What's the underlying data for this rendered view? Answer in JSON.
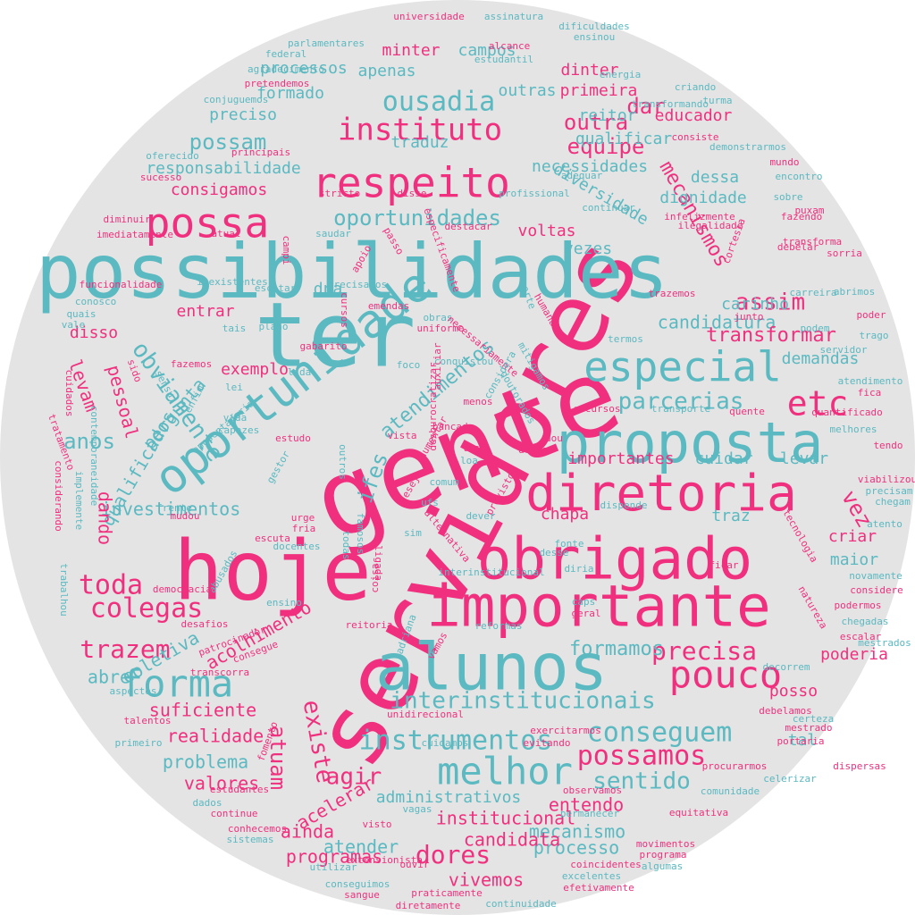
{
  "palette": {
    "background": "#e4e4e4",
    "pink": "#f0307e",
    "teal": "#5bb9c1"
  },
  "words": [
    {
      "t": "servidores",
      "c": "pink"
    },
    {
      "t": "gente",
      "c": "pink"
    },
    {
      "t": "ter",
      "c": "teal"
    },
    {
      "t": "hoje",
      "c": "pink"
    },
    {
      "t": "possibilidades",
      "c": "teal"
    },
    {
      "t": "importante",
      "c": "pink"
    },
    {
      "t": "obrigado",
      "c": "pink"
    },
    {
      "t": "alunos",
      "c": "teal"
    },
    {
      "t": "proposta",
      "c": "teal"
    },
    {
      "t": "diretoria",
      "c": "pink"
    },
    {
      "t": "oportunidade",
      "c": "teal"
    },
    {
      "t": "respeito",
      "c": "pink"
    },
    {
      "t": "especial",
      "c": "teal"
    },
    {
      "t": "possa",
      "c": "pink"
    },
    {
      "t": "melhor",
      "c": "teal"
    },
    {
      "t": "pouco",
      "c": "pink"
    },
    {
      "t": "forma",
      "c": "teal"
    },
    {
      "t": "instituto",
      "c": "pink"
    },
    {
      "t": "etc",
      "c": "pink"
    },
    {
      "t": "ousadia",
      "c": "teal"
    },
    {
      "t": "obviamente",
      "c": "teal"
    },
    {
      "t": "instrumentos",
      "c": "teal"
    },
    {
      "t": "conseguem",
      "c": "teal"
    },
    {
      "t": "possamos",
      "c": "pink"
    },
    {
      "t": "interinstitucionais",
      "c": "teal"
    },
    {
      "t": "oportunidades",
      "c": "teal"
    },
    {
      "t": "parcerias",
      "c": "teal"
    },
    {
      "t": "colegas",
      "c": "pink"
    },
    {
      "t": "toda",
      "c": "pink"
    },
    {
      "t": "trazem",
      "c": "pink"
    },
    {
      "t": "precisa",
      "c": "pink"
    },
    {
      "t": "equipe",
      "c": "pink"
    },
    {
      "t": "outra",
      "c": "pink"
    },
    {
      "t": "dar",
      "c": "pink"
    },
    {
      "t": "possam",
      "c": "teal"
    },
    {
      "t": "assim",
      "c": "pink"
    },
    {
      "t": "sentido",
      "c": "teal"
    },
    {
      "t": "dores",
      "c": "pink"
    },
    {
      "t": "agir",
      "c": "pink"
    },
    {
      "t": "atuam",
      "c": "pink"
    },
    {
      "t": "existe",
      "c": "pink"
    },
    {
      "t": "vez",
      "c": "pink"
    },
    {
      "t": "anos",
      "c": "teal"
    },
    {
      "t": "ifes",
      "c": "teal"
    },
    {
      "t": "mecanismos",
      "c": "pink"
    },
    {
      "t": "diversidade",
      "c": "teal"
    },
    {
      "t": "candidatura",
      "c": "teal"
    },
    {
      "t": "transformar",
      "c": "pink"
    },
    {
      "t": "formamos",
      "c": "teal"
    },
    {
      "t": "acolhimento",
      "c": "pink"
    },
    {
      "t": "institucional",
      "c": "pink"
    },
    {
      "t": "administrativos",
      "c": "teal"
    },
    {
      "t": "programas",
      "c": "pink"
    },
    {
      "t": "vivemos",
      "c": "pink"
    },
    {
      "t": "processo",
      "c": "teal"
    },
    {
      "t": "mecanismo",
      "c": "teal"
    },
    {
      "t": "candidata",
      "c": "pink"
    },
    {
      "t": "acelerar",
      "c": "pink"
    },
    {
      "t": "ainda",
      "c": "pink"
    },
    {
      "t": "entendo",
      "c": "pink"
    },
    {
      "t": "atender",
      "c": "teal"
    },
    {
      "t": "valores",
      "c": "pink"
    },
    {
      "t": "problema",
      "c": "teal"
    },
    {
      "t": "realidade",
      "c": "pink"
    },
    {
      "t": "suficiente",
      "c": "pink"
    },
    {
      "t": "abre",
      "c": "teal"
    },
    {
      "t": "coletiva",
      "c": "teal"
    },
    {
      "t": "investimentos",
      "c": "teal"
    },
    {
      "t": "qualificados",
      "c": "teal"
    },
    {
      "t": "pergunta",
      "c": "teal"
    },
    {
      "t": "pessoal",
      "c": "pink"
    },
    {
      "t": "dando",
      "c": "pink"
    },
    {
      "t": "levam",
      "c": "pink"
    },
    {
      "t": "disso",
      "c": "pink"
    },
    {
      "t": "entrar",
      "c": "pink"
    },
    {
      "t": "exemplo",
      "c": "pink"
    },
    {
      "t": "dna",
      "c": "teal"
    },
    {
      "t": "vezes",
      "c": "teal"
    },
    {
      "t": "voltas",
      "c": "pink"
    },
    {
      "t": "dignidade",
      "c": "teal"
    },
    {
      "t": "dessa",
      "c": "teal"
    },
    {
      "t": "necessidades",
      "c": "teal"
    },
    {
      "t": "consigamos",
      "c": "pink"
    },
    {
      "t": "responsabilidade",
      "c": "teal"
    },
    {
      "t": "traduz",
      "c": "teal"
    },
    {
      "t": "qualificar",
      "c": "teal"
    },
    {
      "t": "reitor",
      "c": "teal"
    },
    {
      "t": "educador",
      "c": "pink"
    },
    {
      "t": "preciso",
      "c": "teal"
    },
    {
      "t": "formado",
      "c": "teal"
    },
    {
      "t": "outras",
      "c": "teal"
    },
    {
      "t": "primeira",
      "c": "pink"
    },
    {
      "t": "processos",
      "c": "teal"
    },
    {
      "t": "apenas",
      "c": "teal"
    },
    {
      "t": "minter",
      "c": "pink"
    },
    {
      "t": "campos",
      "c": "teal"
    },
    {
      "t": "dinter",
      "c": "pink"
    },
    {
      "t": "carinho",
      "c": "teal"
    },
    {
      "t": "demandas",
      "c": "teal"
    },
    {
      "t": "levar",
      "c": "teal"
    },
    {
      "t": "cuidar",
      "c": "teal"
    },
    {
      "t": "importantes",
      "c": "pink"
    },
    {
      "t": "traz",
      "c": "teal"
    },
    {
      "t": "chapa",
      "c": "pink"
    },
    {
      "t": "criar",
      "c": "pink"
    },
    {
      "t": "maior",
      "c": "teal"
    },
    {
      "t": "poderia",
      "c": "pink"
    },
    {
      "t": "posso",
      "c": "pink"
    },
    {
      "t": "tal",
      "c": "teal"
    },
    {
      "t": "atendimentos",
      "c": "teal"
    },
    {
      "t": "universidade",
      "c": "pink"
    },
    {
      "t": "assinatura",
      "c": "teal"
    },
    {
      "t": "dificuldades",
      "c": "teal"
    },
    {
      "t": "ensinou",
      "c": "teal"
    },
    {
      "t": "parlamentares",
      "c": "teal"
    },
    {
      "t": "alcance",
      "c": "pink"
    },
    {
      "t": "federal",
      "c": "teal"
    },
    {
      "t": "estudantil",
      "c": "teal"
    },
    {
      "t": "agradecimento",
      "c": "teal"
    },
    {
      "t": "pretendemos",
      "c": "pink"
    },
    {
      "t": "energia",
      "c": "teal"
    },
    {
      "t": "criando",
      "c": "teal"
    },
    {
      "t": "conjuguemos",
      "c": "teal"
    },
    {
      "t": "turma",
      "c": "teal"
    },
    {
      "t": "transformando",
      "c": "teal"
    },
    {
      "t": "consiste",
      "c": "pink"
    },
    {
      "t": "demonstrarmos",
      "c": "teal"
    },
    {
      "t": "principais",
      "c": "pink"
    },
    {
      "t": "oferecido",
      "c": "teal"
    },
    {
      "t": "mundo",
      "c": "pink"
    },
    {
      "t": "sucesso",
      "c": "pink"
    },
    {
      "t": "adequar",
      "c": "teal"
    },
    {
      "t": "encontro",
      "c": "teal"
    },
    {
      "t": "stricto",
      "c": "pink"
    },
    {
      "t": "disse",
      "c": "pink"
    },
    {
      "t": "profissional",
      "c": "teal"
    },
    {
      "t": "sobre",
      "c": "teal"
    },
    {
      "t": "continuar",
      "c": "teal"
    },
    {
      "t": "puxam",
      "c": "pink"
    },
    {
      "t": "diminuir",
      "c": "pink"
    },
    {
      "t": "infelizmente",
      "c": "pink"
    },
    {
      "t": "fazendo",
      "c": "pink"
    },
    {
      "t": "imediatamente",
      "c": "pink"
    },
    {
      "t": "atual",
      "c": "pink"
    },
    {
      "t": "saudar",
      "c": "teal"
    },
    {
      "t": "destacar",
      "c": "pink"
    },
    {
      "t": "ilegalidade",
      "c": "pink"
    },
    {
      "t": "transforma",
      "c": "pink"
    },
    {
      "t": "debelar",
      "c": "pink"
    },
    {
      "t": "sorria",
      "c": "pink"
    },
    {
      "t": "campi",
      "c": "pink"
    },
    {
      "t": "apoio",
      "c": "pink"
    },
    {
      "t": "passo",
      "c": "pink"
    },
    {
      "t": "especificamente",
      "c": "pink"
    },
    {
      "t": "cortesia",
      "c": "pink"
    },
    {
      "t": "inexistentes",
      "c": "teal"
    },
    {
      "t": "funcionalidade",
      "c": "pink"
    },
    {
      "t": "escitar",
      "c": "teal"
    },
    {
      "t": "precisamos",
      "c": "teal"
    },
    {
      "t": "trazemos",
      "c": "pink"
    },
    {
      "t": "carreira",
      "c": "teal"
    },
    {
      "t": "abrimos",
      "c": "teal"
    },
    {
      "t": "conosco",
      "c": "teal"
    },
    {
      "t": "cursos",
      "c": "pink"
    },
    {
      "t": "emendas",
      "c": "pink"
    },
    {
      "t": "humana",
      "c": "pink"
    },
    {
      "t": "sorte",
      "c": "teal"
    },
    {
      "t": "quais",
      "c": "teal"
    },
    {
      "t": "poder",
      "c": "pink"
    },
    {
      "t": "vale",
      "c": "teal"
    },
    {
      "t": "plano",
      "c": "teal"
    },
    {
      "t": "tais",
      "c": "teal"
    },
    {
      "t": "obras",
      "c": "teal"
    },
    {
      "t": "uniforme",
      "c": "pink"
    },
    {
      "t": "junto",
      "c": "pink"
    },
    {
      "t": "podem",
      "c": "teal"
    },
    {
      "t": "trago",
      "c": "teal"
    },
    {
      "t": "gabarito",
      "c": "pink"
    },
    {
      "t": "necessariamente",
      "c": "pink"
    },
    {
      "t": "termos",
      "c": "teal"
    },
    {
      "t": "servidor",
      "c": "teal"
    },
    {
      "t": "sido",
      "c": "pink"
    },
    {
      "t": "fazemos",
      "c": "pink"
    },
    {
      "t": "lida",
      "c": "teal"
    },
    {
      "t": "foco",
      "c": "teal"
    },
    {
      "t": "conquistou",
      "c": "teal"
    },
    {
      "t": "mitigamos",
      "c": "teal"
    },
    {
      "t": "atendimento",
      "c": "teal"
    },
    {
      "t": "cuidados",
      "c": "pink"
    },
    {
      "t": "sensu",
      "c": "teal"
    },
    {
      "t": "lei",
      "c": "teal"
    },
    {
      "t": "auxiliar",
      "c": "pink"
    },
    {
      "t": "considera",
      "c": "teal"
    },
    {
      "t": "doutorados",
      "c": "teal"
    },
    {
      "t": "fica",
      "c": "pink"
    },
    {
      "t": "enfim",
      "c": "teal"
    },
    {
      "t": "desburocratizar",
      "c": "pink"
    },
    {
      "t": "menos",
      "c": "pink"
    },
    {
      "t": "recursos",
      "c": "pink"
    },
    {
      "t": "transporte",
      "c": "teal"
    },
    {
      "t": "quente",
      "c": "pink"
    },
    {
      "t": "quantificado",
      "c": "pink"
    },
    {
      "t": "tratamento",
      "c": "pink"
    },
    {
      "t": "contemporaneidade",
      "c": "teal"
    },
    {
      "t": "vida",
      "c": "teal"
    },
    {
      "t": "capazes",
      "c": "teal"
    },
    {
      "t": "bancada",
      "c": "pink"
    },
    {
      "t": "melhores",
      "c": "teal"
    },
    {
      "t": "aposentadoria",
      "c": "teal"
    },
    {
      "t": "estudo",
      "c": "pink"
    },
    {
      "t": "vista",
      "c": "pink"
    },
    {
      "t": "dou",
      "c": "pink"
    },
    {
      "t": "dessas",
      "c": "pink"
    },
    {
      "t": "tendo",
      "c": "pink"
    },
    {
      "t": "gestor",
      "c": "teal"
    },
    {
      "t": "outros",
      "c": "teal"
    },
    {
      "t": "aumentar",
      "c": "pink"
    },
    {
      "t": "los",
      "c": "pink"
    },
    {
      "t": "loa",
      "c": "teal"
    },
    {
      "t": "viabilizou",
      "c": "pink"
    },
    {
      "t": "considerando",
      "c": "pink"
    },
    {
      "t": "implemente",
      "c": "teal"
    },
    {
      "t": "comum",
      "c": "teal"
    },
    {
      "t": "precisam",
      "c": "teal"
    },
    {
      "t": "chegam",
      "c": "teal"
    },
    {
      "t": "desejo",
      "c": "pink"
    },
    {
      "t": "previstos",
      "c": "pink"
    },
    {
      "t": "dispende",
      "c": "teal"
    },
    {
      "t": "ufs",
      "c": "teal"
    },
    {
      "t": "mudou",
      "c": "pink"
    },
    {
      "t": "frente",
      "c": "teal"
    },
    {
      "t": "dever",
      "c": "teal"
    },
    {
      "t": "atento",
      "c": "teal"
    },
    {
      "t": "urge",
      "c": "pink"
    },
    {
      "t": "alternativa",
      "c": "pink"
    },
    {
      "t": "fria",
      "c": "pink"
    },
    {
      "t": "tecnologia",
      "c": "pink"
    },
    {
      "t": "famosos",
      "c": "teal"
    },
    {
      "t": "escuta",
      "c": "pink"
    },
    {
      "t": "todas",
      "c": "teal"
    },
    {
      "t": "sim",
      "c": "teal"
    },
    {
      "t": "fonte",
      "c": "teal"
    },
    {
      "t": "docentes",
      "c": "teal"
    },
    {
      "t": "ligada",
      "c": "pink"
    },
    {
      "t": "desse",
      "c": "teal"
    },
    {
      "t": "coisa",
      "c": "pink"
    },
    {
      "t": "diria",
      "c": "teal"
    },
    {
      "t": "trabalhou",
      "c": "teal"
    },
    {
      "t": "abusados",
      "c": "teal"
    },
    {
      "t": "interinstitucional",
      "c": "teal"
    },
    {
      "t": "ficar",
      "c": "pink"
    },
    {
      "t": "novamente",
      "c": "teal"
    },
    {
      "t": "democracia",
      "c": "pink"
    },
    {
      "t": "considere",
      "c": "pink"
    },
    {
      "t": "ensino",
      "c": "teal"
    },
    {
      "t": "caps",
      "c": "teal"
    },
    {
      "t": "geral",
      "c": "pink"
    },
    {
      "t": "podermos",
      "c": "pink"
    },
    {
      "t": "natureza",
      "c": "pink"
    },
    {
      "t": "chegadas",
      "c": "teal"
    },
    {
      "t": "desafios",
      "c": "pink"
    },
    {
      "t": "reitoria",
      "c": "pink"
    },
    {
      "t": "reformas",
      "c": "teal"
    },
    {
      "t": "adriana",
      "c": "teal"
    },
    {
      "t": "escalar",
      "c": "pink"
    },
    {
      "t": "patrocinador",
      "c": "pink"
    },
    {
      "t": "consegue",
      "c": "pink"
    },
    {
      "t": "mestrados",
      "c": "teal"
    },
    {
      "t": "vamos",
      "c": "pink"
    },
    {
      "t": "transcorra",
      "c": "pink"
    },
    {
      "t": "decorrem",
      "c": "teal"
    },
    {
      "t": "aspectos",
      "c": "teal"
    },
    {
      "t": "unidirecional",
      "c": "pink"
    },
    {
      "t": "talentos",
      "c": "pink"
    },
    {
      "t": "debelamos",
      "c": "pink"
    },
    {
      "t": "certeza",
      "c": "teal"
    },
    {
      "t": "primeiro",
      "c": "teal"
    },
    {
      "t": "fomento",
      "c": "pink"
    },
    {
      "t": "cuidamos",
      "c": "teal"
    },
    {
      "t": "evitando",
      "c": "pink"
    },
    {
      "t": "exercitarmos",
      "c": "pink"
    },
    {
      "t": "mestrado",
      "c": "pink"
    },
    {
      "t": "portaria",
      "c": "pink"
    },
    {
      "t": "procurarmos",
      "c": "pink"
    },
    {
      "t": "dispersas",
      "c": "pink"
    },
    {
      "t": "celerizar",
      "c": "teal"
    },
    {
      "t": "estudantes",
      "c": "pink"
    },
    {
      "t": "observamos",
      "c": "pink"
    },
    {
      "t": "comunidade",
      "c": "teal"
    },
    {
      "t": "dados",
      "c": "teal"
    },
    {
      "t": "continue",
      "c": "pink"
    },
    {
      "t": "visto",
      "c": "pink"
    },
    {
      "t": "vagas",
      "c": "teal"
    },
    {
      "t": "permanecer",
      "c": "teal"
    },
    {
      "t": "equitativa",
      "c": "pink"
    },
    {
      "t": "conhecemos",
      "c": "pink"
    },
    {
      "t": "sistemas",
      "c": "teal"
    },
    {
      "t": "movimentos",
      "c": "pink"
    },
    {
      "t": "extensionista",
      "c": "pink"
    },
    {
      "t": "programa",
      "c": "pink"
    },
    {
      "t": "utilizar",
      "c": "teal"
    },
    {
      "t": "ouvir",
      "c": "pink"
    },
    {
      "t": "coincidentes",
      "c": "pink"
    },
    {
      "t": "algumas",
      "c": "teal"
    },
    {
      "t": "conseguimos",
      "c": "teal"
    },
    {
      "t": "excelentes",
      "c": "teal"
    },
    {
      "t": "sangue",
      "c": "pink"
    },
    {
      "t": "praticamente",
      "c": "pink"
    },
    {
      "t": "efetivamente",
      "c": "pink"
    },
    {
      "t": "diretamente",
      "c": "pink"
    },
    {
      "t": "continuidade",
      "c": "teal"
    }
  ]
}
